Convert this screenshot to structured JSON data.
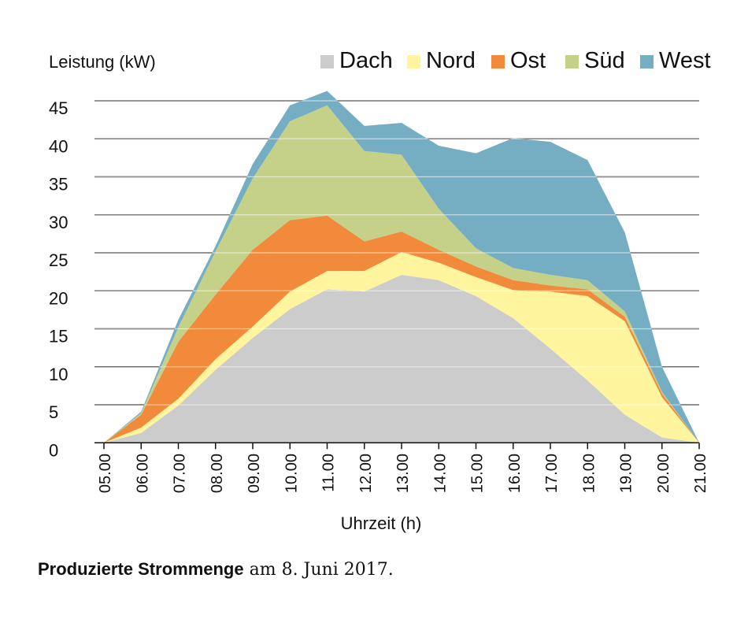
{
  "chart_data": {
    "type": "area",
    "stacked": true,
    "ylabel": "Leistung (kW)",
    "xlabel": "Uhrzeit (h)",
    "caption_bold": "Produzierte Strommenge",
    "caption_rest": " am 8. Juni 2017.",
    "ylim": [
      0,
      45
    ],
    "yticks": [
      "0",
      "5",
      "10",
      "15",
      "20",
      "25",
      "30",
      "35",
      "40",
      "45"
    ],
    "categories": [
      "05.00",
      "06.00",
      "07.00",
      "08.00",
      "09.00",
      "10.00",
      "11.00",
      "12.00",
      "13.00",
      "14.00",
      "15.00",
      "16.00",
      "17.00",
      "18.00",
      "19.00",
      "20.00",
      "21.00"
    ],
    "grid": true,
    "legend_position": "top-right",
    "series": [
      {
        "name": "Dach",
        "color": "#cbcccb",
        "values": [
          0,
          1.3,
          4.9,
          9.6,
          13.8,
          17.6,
          20.2,
          19.9,
          22.1,
          21.4,
          19.3,
          16.4,
          12.4,
          8.2,
          3.7,
          0.7,
          0
        ]
      },
      {
        "name": "Nord",
        "color": "#fff59f",
        "values": [
          0,
          0.7,
          0.9,
          1.4,
          1.5,
          2.3,
          2.4,
          2.7,
          3.0,
          2.3,
          2.5,
          3.7,
          7.5,
          11.1,
          12.3,
          5.3,
          0
        ]
      },
      {
        "name": "Ost",
        "color": "#f28a3c",
        "values": [
          0,
          1.7,
          7.5,
          8.5,
          10.1,
          9.4,
          7.3,
          3.9,
          2.7,
          1.7,
          1.4,
          1.3,
          0.8,
          0.9,
          0.6,
          0.5,
          0
        ]
      },
      {
        "name": "Süd",
        "color": "#c5d089",
        "values": [
          0,
          0.2,
          1.9,
          5.7,
          9.4,
          13.0,
          14.5,
          11.9,
          10.1,
          5.4,
          2.4,
          1.6,
          1.4,
          1.2,
          0.7,
          0.2,
          0
        ]
      },
      {
        "name": "West",
        "color": "#75aec3",
        "values": [
          0,
          0.2,
          1.0,
          0.7,
          1.9,
          2.1,
          1.9,
          3.3,
          4.2,
          8.3,
          12.5,
          17.1,
          17.5,
          15.8,
          10.4,
          3.3,
          0
        ]
      }
    ]
  }
}
